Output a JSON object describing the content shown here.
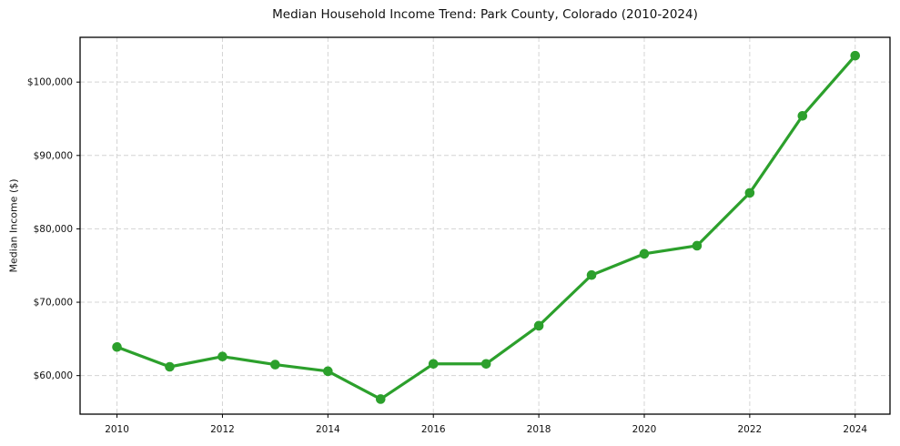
{
  "chart_data": {
    "type": "line",
    "title": "Median Household Income Trend: Park County, Colorado (2010-2024)",
    "xlabel": "",
    "ylabel": "Median Income ($)",
    "x": [
      2010,
      2011,
      2012,
      2013,
      2014,
      2015,
      2016,
      2017,
      2018,
      2019,
      2020,
      2021,
      2022,
      2023,
      2024
    ],
    "values": [
      63900,
      61200,
      62600,
      61500,
      60600,
      56800,
      61600,
      61600,
      66800,
      73700,
      76600,
      77700,
      84900,
      95400,
      103600
    ],
    "series_name": "Median household income",
    "xlim": [
      2009.3,
      2024.66
    ],
    "ylim": [
      54750,
      106100
    ],
    "x_ticks": [
      {
        "value": 2010,
        "label": "2010"
      },
      {
        "value": 2012,
        "label": "2012"
      },
      {
        "value": 2014,
        "label": "2014"
      },
      {
        "value": 2016,
        "label": "2016"
      },
      {
        "value": 2018,
        "label": "2018"
      },
      {
        "value": 2020,
        "label": "2020"
      },
      {
        "value": 2022,
        "label": "2022"
      },
      {
        "value": 2024,
        "label": "2024"
      }
    ],
    "y_ticks": [
      {
        "value": 60000,
        "label": "$60,000"
      },
      {
        "value": 70000,
        "label": "$70,000"
      },
      {
        "value": 80000,
        "label": "$80,000"
      },
      {
        "value": 90000,
        "label": "$90,000"
      },
      {
        "value": 100000,
        "label": "$100,000"
      }
    ],
    "grid": true,
    "grid_style": "dashed",
    "legend_position": "none",
    "marker": "circle"
  },
  "colors": {
    "line": "#2ca02c",
    "marker": "#2ca02c",
    "grid": "#d4d4d4",
    "spine": "#000000",
    "text": "#111111",
    "background": "#ffffff"
  }
}
